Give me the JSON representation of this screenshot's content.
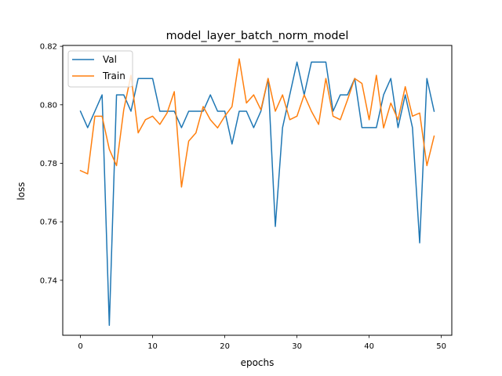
{
  "chart_data": {
    "type": "line",
    "title": "model_layer_batch_norm_model",
    "xlabel": "epochs",
    "ylabel": "loss",
    "xlim": [
      -2.45,
      51.45
    ],
    "ylim": [
      0.7212,
      0.8203
    ],
    "xticks": [
      0,
      10,
      20,
      30,
      40,
      50
    ],
    "yticks": [
      0.74,
      0.76,
      0.78,
      0.8,
      0.82
    ],
    "ytick_labels": [
      "0.74",
      "0.76",
      "0.78",
      "0.80",
      "0.82"
    ],
    "grid": false,
    "legend_position": "top-left",
    "series": [
      {
        "name": "Val",
        "color": "#1f77b4",
        "x": [
          0,
          1,
          2,
          3,
          4,
          5,
          6,
          7,
          8,
          9,
          10,
          11,
          12,
          13,
          14,
          15,
          16,
          17,
          18,
          19,
          20,
          21,
          22,
          23,
          24,
          25,
          26,
          27,
          28,
          29,
          30,
          31,
          32,
          33,
          34,
          35,
          36,
          37,
          38,
          39,
          40,
          41,
          42,
          43,
          44,
          45,
          46,
          47,
          48,
          49
        ],
        "values": [
          0.7978,
          0.7922,
          0.7978,
          0.8034,
          0.7246,
          0.8034,
          0.8034,
          0.7978,
          0.809,
          0.809,
          0.809,
          0.7978,
          0.7978,
          0.7978,
          0.7922,
          0.7978,
          0.7978,
          0.7978,
          0.8034,
          0.7978,
          0.7978,
          0.7866,
          0.7978,
          0.7978,
          0.7922,
          0.7978,
          0.809,
          0.7584,
          0.7922,
          0.8034,
          0.8146,
          0.8034,
          0.8146,
          0.8146,
          0.8146,
          0.7978,
          0.8034,
          0.8034,
          0.809,
          0.7922,
          0.7922,
          0.7922,
          0.8034,
          0.809,
          0.7922,
          0.8034,
          0.7922,
          0.7528,
          0.809,
          0.7978
        ]
      },
      {
        "name": "Train",
        "color": "#ff7f0e",
        "x": [
          0,
          1,
          2,
          3,
          4,
          5,
          6,
          7,
          8,
          9,
          10,
          11,
          12,
          13,
          14,
          15,
          16,
          17,
          18,
          19,
          20,
          21,
          22,
          23,
          24,
          25,
          26,
          27,
          28,
          29,
          30,
          31,
          32,
          33,
          34,
          35,
          36,
          37,
          38,
          39,
          40,
          41,
          42,
          43,
          44,
          45,
          46,
          47,
          48,
          49
        ],
        "values": [
          0.7775,
          0.7764,
          0.7961,
          0.7961,
          0.7848,
          0.7792,
          0.7983,
          0.8101,
          0.7904,
          0.7949,
          0.7961,
          0.7933,
          0.7972,
          0.8045,
          0.7719,
          0.7876,
          0.7904,
          0.7994,
          0.7949,
          0.7921,
          0.7961,
          0.7994,
          0.8157,
          0.8006,
          0.8034,
          0.7983,
          0.809,
          0.7978,
          0.8034,
          0.7949,
          0.7961,
          0.8034,
          0.7978,
          0.7933,
          0.809,
          0.7961,
          0.7949,
          0.8017,
          0.809,
          0.8073,
          0.7949,
          0.8101,
          0.7921,
          0.8006,
          0.7949,
          0.8062,
          0.7961,
          0.7972,
          0.7792,
          0.7893
        ]
      }
    ]
  }
}
